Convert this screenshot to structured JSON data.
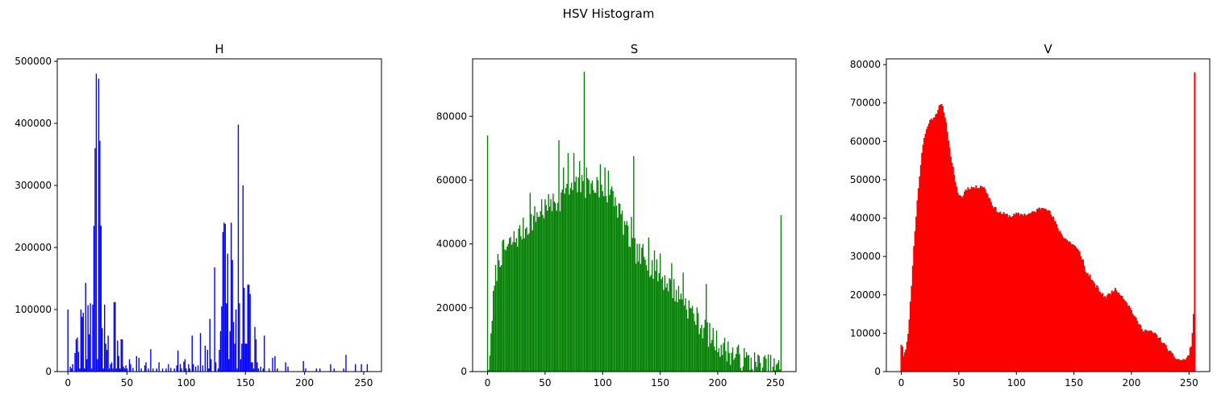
{
  "figure": {
    "suptitle": "HSV Histogram"
  },
  "chart_data": [
    {
      "type": "bar",
      "title": "H",
      "color": "#0000ff",
      "xlim": [
        -9,
        265
      ],
      "ylim": [
        0,
        504000
      ],
      "xticks": [
        0,
        50,
        100,
        150,
        200,
        250
      ],
      "xtick_labels": [
        "0",
        "50",
        "100",
        "150",
        "200",
        "250"
      ],
      "yticks": [
        0,
        100000,
        200000,
        300000,
        400000,
        500000
      ],
      "ytick_labels": [
        "0",
        "100000",
        "200000",
        "300000",
        "400000",
        "500000"
      ],
      "points": [
        [
          0,
          100000
        ],
        [
          2,
          8000
        ],
        [
          3,
          5000
        ],
        [
          4,
          12000
        ],
        [
          6,
          30000
        ],
        [
          7,
          52000
        ],
        [
          8,
          55000
        ],
        [
          9,
          32000
        ],
        [
          10,
          5000
        ],
        [
          11,
          100000
        ],
        [
          12,
          88000
        ],
        [
          13,
          95000
        ],
        [
          14,
          5000
        ],
        [
          15,
          143000
        ],
        [
          16,
          20000
        ],
        [
          17,
          107000
        ],
        [
          18,
          60000
        ],
        [
          19,
          110000
        ],
        [
          20,
          5000
        ],
        [
          21,
          108000
        ],
        [
          22,
          235000
        ],
        [
          23,
          360000
        ],
        [
          24,
          480000
        ],
        [
          25,
          20000
        ],
        [
          26,
          472000
        ],
        [
          27,
          372000
        ],
        [
          28,
          235000
        ],
        [
          29,
          70000
        ],
        [
          30,
          5000
        ],
        [
          31,
          108000
        ],
        [
          32,
          45000
        ],
        [
          33,
          35000
        ],
        [
          34,
          58000
        ],
        [
          35,
          5000
        ],
        [
          36,
          12000
        ],
        [
          37,
          15000
        ],
        [
          38,
          5000
        ],
        [
          39,
          112000
        ],
        [
          40,
          112000
        ],
        [
          41,
          5000
        ],
        [
          42,
          50000
        ],
        [
          43,
          25000
        ],
        [
          44,
          5000
        ],
        [
          45,
          52000
        ],
        [
          46,
          52000
        ],
        [
          47,
          8000
        ],
        [
          48,
          5000
        ],
        [
          49,
          10000
        ],
        [
          50,
          5000
        ],
        [
          52,
          20000
        ],
        [
          53,
          12000
        ],
        [
          55,
          6000
        ],
        [
          58,
          25000
        ],
        [
          60,
          22000
        ],
        [
          62,
          5000
        ],
        [
          65,
          10000
        ],
        [
          66,
          15000
        ],
        [
          68,
          5000
        ],
        [
          70,
          36000
        ],
        [
          72,
          5000
        ],
        [
          75,
          5000
        ],
        [
          77,
          15000
        ],
        [
          80,
          5000
        ],
        [
          83,
          5000
        ],
        [
          85,
          12000
        ],
        [
          87,
          6000
        ],
        [
          90,
          5000
        ],
        [
          92,
          10000
        ],
        [
          93,
          34000
        ],
        [
          95,
          12000
        ],
        [
          96,
          5000
        ],
        [
          98,
          16000
        ],
        [
          99,
          20000
        ],
        [
          100,
          5000
        ],
        [
          102,
          12000
        ],
        [
          103,
          5000
        ],
        [
          105,
          58000
        ],
        [
          106,
          12000
        ],
        [
          108,
          8000
        ],
        [
          110,
          10000
        ],
        [
          112,
          62000
        ],
        [
          114,
          10000
        ],
        [
          116,
          42000
        ],
        [
          118,
          35000
        ],
        [
          119,
          5000
        ],
        [
          120,
          85000
        ],
        [
          121,
          20000
        ],
        [
          124,
          168000
        ],
        [
          125,
          15000
        ],
        [
          127,
          5000
        ],
        [
          128,
          35000
        ],
        [
          129,
          65000
        ],
        [
          130,
          105000
        ],
        [
          131,
          225000
        ],
        [
          132,
          240000
        ],
        [
          133,
          238000
        ],
        [
          134,
          110000
        ],
        [
          135,
          190000
        ],
        [
          136,
          20000
        ],
        [
          137,
          65000
        ],
        [
          138,
          240000
        ],
        [
          139,
          180000
        ],
        [
          140,
          80000
        ],
        [
          141,
          45000
        ],
        [
          142,
          100000
        ],
        [
          143,
          5000
        ],
        [
          144,
          398000
        ],
        [
          145,
          110000
        ],
        [
          146,
          20000
        ],
        [
          147,
          45000
        ],
        [
          148,
          300000
        ],
        [
          149,
          135000
        ],
        [
          150,
          45000
        ],
        [
          151,
          45000
        ],
        [
          152,
          140000
        ],
        [
          153,
          140000
        ],
        [
          154,
          125000
        ],
        [
          155,
          15000
        ],
        [
          156,
          15000
        ],
        [
          157,
          5000
        ],
        [
          158,
          72000
        ],
        [
          159,
          52000
        ],
        [
          160,
          15000
        ],
        [
          161,
          5000
        ],
        [
          163,
          8000
        ],
        [
          165,
          5000
        ],
        [
          166,
          58000
        ],
        [
          170,
          5000
        ],
        [
          173,
          22000
        ],
        [
          175,
          25000
        ],
        [
          177,
          5000
        ],
        [
          184,
          15000
        ],
        [
          186,
          8000
        ],
        [
          199,
          17000
        ],
        [
          201,
          5000
        ],
        [
          210,
          5000
        ],
        [
          213,
          5000
        ],
        [
          222,
          12000
        ],
        [
          225,
          5000
        ],
        [
          233,
          5000
        ],
        [
          235,
          27000
        ],
        [
          243,
          12000
        ],
        [
          248,
          12000
        ],
        [
          253,
          12000
        ]
      ]
    },
    {
      "type": "bar",
      "title": "S",
      "color": "#008000",
      "xlim": [
        -13,
        268
      ],
      "ylim": [
        0,
        98000
      ],
      "xticks": [
        0,
        50,
        100,
        150,
        200,
        250
      ],
      "xtick_labels": [
        "0",
        "50",
        "100",
        "150",
        "200",
        "250"
      ],
      "yticks": [
        0,
        20000,
        40000,
        60000,
        80000
      ],
      "ytick_labels": [
        "0",
        "20000",
        "40000",
        "60000",
        "80000"
      ],
      "anchors": [
        [
          0,
          74000
        ],
        [
          1,
          600
        ],
        [
          2,
          5000
        ],
        [
          3,
          12000
        ],
        [
          4,
          18000
        ],
        [
          5,
          22000
        ],
        [
          7,
          30000
        ],
        [
          10,
          36000
        ],
        [
          15,
          38000
        ],
        [
          20,
          40000
        ],
        [
          25,
          42000
        ],
        [
          30,
          44000
        ],
        [
          35,
          46000
        ],
        [
          40,
          48000
        ],
        [
          45,
          50000
        ],
        [
          50,
          51000
        ],
        [
          55,
          52000
        ],
        [
          60,
          53000
        ],
        [
          65,
          55000
        ],
        [
          70,
          56000
        ],
        [
          75,
          57000
        ],
        [
          80,
          58000
        ],
        [
          85,
          58000
        ],
        [
          90,
          58000
        ],
        [
          95,
          57000
        ],
        [
          100,
          57000
        ],
        [
          105,
          56000
        ],
        [
          110,
          54000
        ],
        [
          115,
          50000
        ],
        [
          120,
          44000
        ],
        [
          125,
          40000
        ],
        [
          130,
          37000
        ],
        [
          135,
          35000
        ],
        [
          140,
          34000
        ],
        [
          145,
          32000
        ],
        [
          150,
          30000
        ],
        [
          155,
          28500
        ],
        [
          160,
          26500
        ],
        [
          165,
          24500
        ],
        [
          170,
          22500
        ],
        [
          175,
          20000
        ],
        [
          180,
          17500
        ],
        [
          185,
          15000
        ],
        [
          190,
          12500
        ],
        [
          195,
          10500
        ],
        [
          200,
          9000
        ],
        [
          205,
          7500
        ],
        [
          210,
          6200
        ],
        [
          215,
          5200
        ],
        [
          220,
          4300
        ],
        [
          225,
          3600
        ],
        [
          230,
          3000
        ],
        [
          235,
          2400
        ],
        [
          240,
          1900
        ],
        [
          245,
          1500
        ],
        [
          250,
          1100
        ],
        [
          253,
          800
        ],
        [
          254,
          700
        ]
      ],
      "spikes": [
        [
          0,
          74000
        ],
        [
          37,
          56000
        ],
        [
          47,
          54000
        ],
        [
          55,
          54000
        ],
        [
          62,
          72500
        ],
        [
          66,
          64000
        ],
        [
          70,
          68500
        ],
        [
          75,
          68500
        ],
        [
          80,
          66000
        ],
        [
          84,
          94000
        ],
        [
          86,
          64000
        ],
        [
          90,
          59000
        ],
        [
          95,
          61000
        ],
        [
          98,
          65000
        ],
        [
          102,
          64000
        ],
        [
          105,
          63000
        ],
        [
          108,
          58000
        ],
        [
          112,
          52000
        ],
        [
          120,
          46000
        ],
        [
          125,
          48500
        ],
        [
          127,
          67500
        ],
        [
          135,
          40000
        ],
        [
          140,
          42000
        ],
        [
          145,
          38000
        ],
        [
          150,
          37000
        ],
        [
          160,
          34000
        ],
        [
          170,
          31000
        ],
        [
          190,
          27500
        ],
        [
          255,
          49000
        ]
      ],
      "jitter": 4000,
      "seed": 7
    },
    {
      "type": "area",
      "title": "V",
      "color": "#ff0000",
      "xlim": [
        -13,
        268
      ],
      "ylim": [
        0,
        81500
      ],
      "xticks": [
        0,
        50,
        100,
        150,
        200,
        250
      ],
      "xtick_labels": [
        "0",
        "50",
        "100",
        "150",
        "200",
        "250"
      ],
      "yticks": [
        0,
        10000,
        20000,
        30000,
        40000,
        50000,
        60000,
        70000,
        80000
      ],
      "ytick_labels": [
        "0",
        "10000",
        "20000",
        "30000",
        "40000",
        "50000",
        "60000",
        "70000",
        "80000"
      ],
      "anchors": [
        [
          0,
          7000
        ],
        [
          1,
          6500
        ],
        [
          2,
          4000
        ],
        [
          3,
          5000
        ],
        [
          4,
          6000
        ],
        [
          5,
          8000
        ],
        [
          6,
          10000
        ],
        [
          7,
          14000
        ],
        [
          8,
          18000
        ],
        [
          9,
          22000
        ],
        [
          10,
          28000
        ],
        [
          12,
          37000
        ],
        [
          15,
          48000
        ],
        [
          18,
          57000
        ],
        [
          20,
          61000
        ],
        [
          22,
          63000
        ],
        [
          24,
          65000
        ],
        [
          27,
          66000
        ],
        [
          30,
          67000
        ],
        [
          33,
          69000
        ],
        [
          35,
          69500
        ],
        [
          37,
          68000
        ],
        [
          40,
          63000
        ],
        [
          42,
          58000
        ],
        [
          45,
          53000
        ],
        [
          47,
          49000
        ],
        [
          50,
          46000
        ],
        [
          53,
          45500
        ],
        [
          56,
          47500
        ],
        [
          60,
          48000
        ],
        [
          65,
          48000
        ],
        [
          70,
          48500
        ],
        [
          73,
          47500
        ],
        [
          77,
          45000
        ],
        [
          80,
          43000
        ],
        [
          85,
          41500
        ],
        [
          90,
          41000
        ],
        [
          95,
          40500
        ],
        [
          100,
          41000
        ],
        [
          105,
          41000
        ],
        [
          110,
          41000
        ],
        [
          115,
          41500
        ],
        [
          120,
          42500
        ],
        [
          125,
          43000
        ],
        [
          128,
          42000
        ],
        [
          132,
          40000
        ],
        [
          136,
          37500
        ],
        [
          140,
          35500
        ],
        [
          145,
          34000
        ],
        [
          150,
          33000
        ],
        [
          155,
          31000
        ],
        [
          158,
          29000
        ],
        [
          160,
          26000
        ],
        [
          164,
          25000
        ],
        [
          167,
          23000
        ],
        [
          170,
          22000
        ],
        [
          175,
          20000
        ],
        [
          178,
          19500
        ],
        [
          182,
          20500
        ],
        [
          185,
          21500
        ],
        [
          190,
          20500
        ],
        [
          195,
          18500
        ],
        [
          200,
          16000
        ],
        [
          205,
          13000
        ],
        [
          210,
          11000
        ],
        [
          215,
          10500
        ],
        [
          220,
          10000
        ],
        [
          225,
          8500
        ],
        [
          230,
          6500
        ],
        [
          235,
          4500
        ],
        [
          240,
          3200
        ],
        [
          245,
          3000
        ],
        [
          248,
          3500
        ],
        [
          250,
          4500
        ],
        [
          252,
          7000
        ],
        [
          253,
          10000
        ],
        [
          254,
          15000
        ],
        [
          255,
          78000
        ]
      ],
      "jitter": 500,
      "seed": 11
    }
  ]
}
